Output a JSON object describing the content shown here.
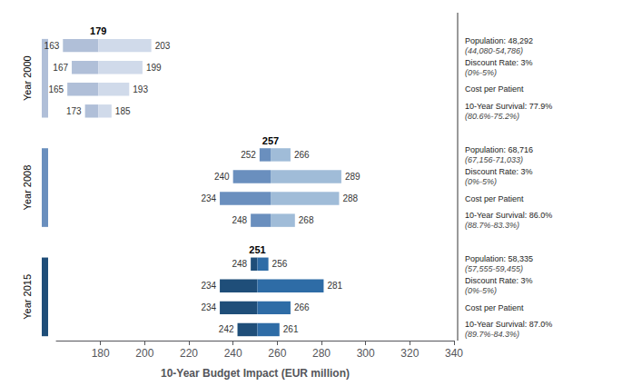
{
  "chart_data": {
    "type": "bar",
    "orientation": "horizontal",
    "xlabel": "10-Year Budget Impact (EUR million)",
    "xlim": [
      160,
      340
    ],
    "xticks": [
      180,
      200,
      220,
      240,
      260,
      280,
      300,
      320,
      340
    ],
    "grid": false,
    "tick_labels": "x",
    "data_labels": true,
    "groups": [
      {
        "name": "Year 2000",
        "central": 179,
        "colors": [
          "#b0bfd8",
          "#d0daea"
        ],
        "low": [
          163,
          167,
          165,
          173
        ],
        "high": [
          203,
          199,
          193,
          185
        ],
        "annotations": [
          "Population: 48,292\n(44,080-54,786)",
          "Discount Rate: 3%\n(0%-5%)",
          "Cost per Patient",
          "10-Year Survival: 77.9%\n(80.6%-75.2%)"
        ]
      },
      {
        "name": "Year 2008",
        "central": 257,
        "colors": [
          "#6a8fbe",
          "#a0bcd8"
        ],
        "low": [
          252,
          240,
          234,
          248
        ],
        "high": [
          266,
          289,
          288,
          268
        ],
        "annotations": [
          "Population: 68,716\n(67,156-71,033)",
          "Discount Rate: 3%\n(0%-5%)",
          "Cost per Patient",
          "10-Year Survival: 86.0%\n(88.7%-83.3%)"
        ]
      },
      {
        "name": "Year 2015",
        "central": 251,
        "colors": [
          "#1f4e79",
          "#2e6ca6"
        ],
        "low": [
          248,
          234,
          234,
          242
        ],
        "high": [
          256,
          281,
          266,
          261
        ],
        "annotations": [
          "Population: 58,335\n(57,555-59,455)",
          "Discount Rate: 3%\n(0%-5%)",
          "Cost per Patient",
          "10-Year Survival: 87.0%\n(89.7%-84.3%)"
        ]
      }
    ]
  }
}
